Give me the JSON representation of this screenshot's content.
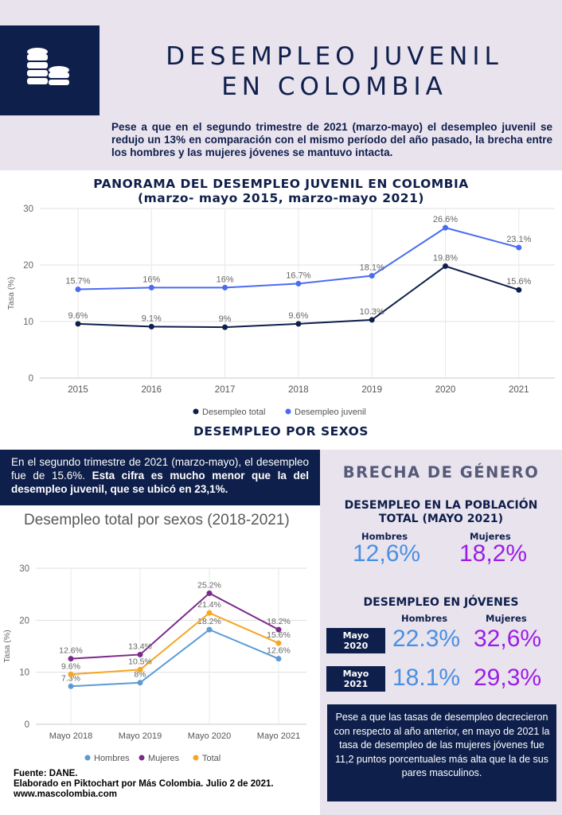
{
  "header": {
    "title_line1": "DESEMPLEO JUVENIL",
    "title_line2": "EN COLOMBIA",
    "intro": "Pese a que en el segundo trimestre de 2021 (marzo-mayo) el desempleo juvenil se redujo un 13% en comparación con el mismo período del año pasado, la brecha entre los hombres y las mujeres jóvenes se mantuvo intacta.",
    "logo_icon": "coins-stack-icon"
  },
  "chart1": {
    "title_line1": "PANORAMA DEL DESEMPLEO JUVENIL EN COLOMBIA",
    "title_line2": "(marzo- mayo 2015, marzo-mayo 2021)"
  },
  "section2": {
    "title": "DESEMPLEO POR SEXOS",
    "note_plain": "En el segundo trimestre de 2021 (marzo-mayo), el desempleo fue de 15.6%. ",
    "note_bold": "Esta cifra es mucho menor que la del desempleo juvenil, que se ubicó en 23,1%.",
    "chart_title": "Desempleo total por sexos (2018-2021)"
  },
  "chart_data": [
    {
      "type": "line",
      "x": [
        "2015",
        "2016",
        "2017",
        "2018",
        "2019",
        "2020",
        "2021"
      ],
      "ylabel": "Tasa (%)",
      "ylim": [
        0,
        30
      ],
      "yticks": [
        0,
        10,
        20,
        30
      ],
      "grid": true,
      "legend": "bottom",
      "series": [
        {
          "name": "Desempleo total",
          "color": "#0f1f4b",
          "values": [
            9.6,
            9.1,
            9.0,
            9.6,
            10.3,
            19.8,
            15.6
          ],
          "labels": [
            "9.6%",
            "9.1%",
            "9%",
            "9.6%",
            "10.3%",
            "19.8%",
            "15.6%"
          ]
        },
        {
          "name": "Desempleo juvenil",
          "color": "#4a6cf0",
          "values": [
            15.7,
            16.0,
            16.0,
            16.7,
            18.1,
            26.6,
            23.1
          ],
          "labels": [
            "15.7%",
            "16%",
            "16%",
            "16.7%",
            "18.1%",
            "26.6%",
            "23.1%"
          ]
        }
      ]
    },
    {
      "type": "line",
      "title": "Desempleo total por sexos (2018-2021)",
      "x": [
        "Mayo 2018",
        "Mayo 2019",
        "Mayo 2020",
        "Mayo 2021"
      ],
      "ylabel": "Tasa (%)",
      "ylim": [
        0,
        30
      ],
      "yticks": [
        0,
        10,
        20,
        30
      ],
      "grid": true,
      "legend": "bottom",
      "series": [
        {
          "name": "Hombres",
          "color": "#5b9bd5",
          "values": [
            7.3,
            8.0,
            18.2,
            12.6
          ],
          "labels": [
            "7.3%",
            "8%",
            "18.2%",
            "12.6%"
          ]
        },
        {
          "name": "Mujeres",
          "color": "#7b2a8a",
          "values": [
            12.6,
            13.4,
            25.2,
            18.2
          ],
          "labels": [
            "12.6%",
            "13.4%",
            "25.2%",
            "18.2%"
          ]
        },
        {
          "name": "Total",
          "color": "#f5a623",
          "values": [
            9.6,
            10.5,
            21.4,
            15.6
          ],
          "labels": [
            "9.6%",
            "10.5%",
            "21.4%",
            "15.6%"
          ]
        }
      ]
    }
  ],
  "panel": {
    "brecha_title": "BRECHA DE GÉNERO",
    "pop_title_line1": "DESEMPLEO EN LA POBLACIÓN",
    "pop_title_line2": "TOTAL (MAYO 2021)",
    "hombres_label": "Hombres",
    "mujeres_label": "Mujeres",
    "pop_hombres": "12,6%",
    "pop_mujeres": "18,2%",
    "youth_title": "DESEMPLEO EN JÓVENES",
    "youth_hombres_label": "Hombres",
    "youth_mujeres_label": "Mujeres",
    "row1_label_line1": "Mayo",
    "row1_label_line2": "2020",
    "row1_hombres": "22.3%",
    "row1_mujeres": "32,6%",
    "row2_label_line1": "Mayo",
    "row2_label_line2": "2021",
    "row2_hombres": "18.1%",
    "row2_mujeres": "29,3%",
    "note": "Pese a que las tasas de desempleo decrecieron con respecto al año anterior, en mayo de 2021 la tasa de desempleo de las mujeres jóvenes fue  11,2 puntos porcentuales más alta que la de sus pares masculinos."
  },
  "footer": {
    "line1": "Fuente: DANE.",
    "line2": "Elaborado en Piktochart por Más Colombia. Julio 2 de 2021.",
    "line3": "www.mascolombia.com"
  }
}
